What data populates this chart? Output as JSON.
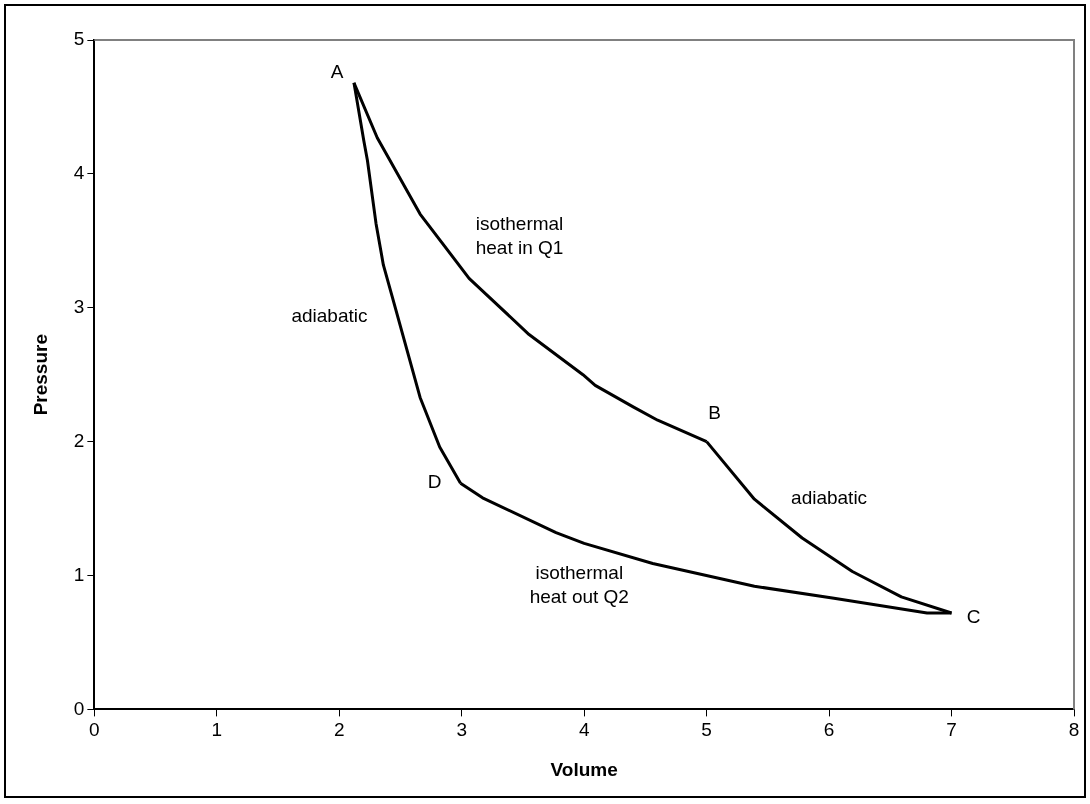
{
  "chart_data": {
    "type": "line",
    "xlabel": "Volume",
    "ylabel": "Pressure",
    "xlim": [
      0,
      8
    ],
    "xticks": [
      0,
      1,
      2,
      3,
      4,
      5,
      6,
      7,
      8
    ],
    "ylim": [
      0,
      5
    ],
    "yticks": [
      0,
      1,
      2,
      3,
      4,
      5
    ],
    "grid": false,
    "legend": false,
    "marker": "none",
    "line_style": "solid",
    "series": [
      {
        "color": "#000000",
        "x": [
          2.12,
          2.31,
          2.66,
          3.06,
          3.55,
          3.99,
          4.09,
          4.4,
          4.6,
          5.0
        ],
        "values": [
          4.68,
          4.27,
          3.7,
          3.22,
          2.8,
          2.5,
          2.42,
          2.26,
          2.16,
          2.0
        ]
      },
      {
        "color": "#000000",
        "x": [
          5.0,
          5.39,
          5.78,
          6.19,
          6.59,
          7.0
        ],
        "values": [
          2.0,
          1.57,
          1.28,
          1.03,
          0.84,
          0.72
        ]
      },
      {
        "color": "#000000",
        "x": [
          2.99,
          3.17,
          3.77,
          4.0,
          4.56,
          5.39,
          6.04,
          6.8,
          7.0
        ],
        "values": [
          1.69,
          1.58,
          1.32,
          1.24,
          1.09,
          0.92,
          0.83,
          0.72,
          0.72
        ]
      },
      {
        "color": "#000000",
        "x": [
          2.12,
          2.2,
          2.23,
          2.3,
          2.36,
          2.43,
          2.66,
          2.82,
          2.99
        ],
        "values": [
          4.68,
          4.25,
          4.1,
          3.63,
          3.32,
          3.09,
          2.33,
          1.96,
          1.69
        ]
      }
    ],
    "annotations": [
      {
        "text": "A",
        "x": 2.12,
        "y": 4.68
      },
      "isothermal\nheat in Q1",
      "adiabatic",
      {
        "text": "B",
        "x": 5.0,
        "y": 2.0
      },
      "adiabatic",
      {
        "text": "D",
        "x": 2.99,
        "y": 1.69
      },
      "isothermal\nheat out Q2",
      {
        "text": "C",
        "x": 7.0,
        "y": 0.72
      }
    ]
  }
}
